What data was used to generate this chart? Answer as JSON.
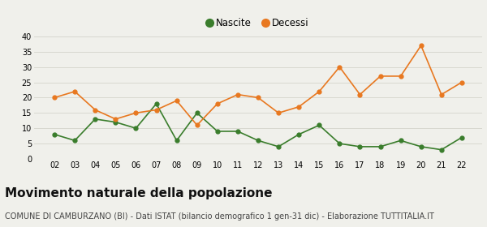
{
  "years": [
    "02",
    "03",
    "04",
    "05",
    "06",
    "07",
    "08",
    "09",
    "10",
    "11",
    "12",
    "13",
    "14",
    "15",
    "16",
    "17",
    "18",
    "19",
    "20",
    "21",
    "22"
  ],
  "nascite": [
    8,
    6,
    13,
    12,
    10,
    18,
    6,
    15,
    9,
    9,
    6,
    4,
    8,
    11,
    5,
    4,
    4,
    6,
    4,
    3,
    7
  ],
  "decessi": [
    20,
    22,
    16,
    13,
    15,
    16,
    19,
    11,
    18,
    21,
    20,
    15,
    17,
    22,
    30,
    21,
    27,
    27,
    37,
    21,
    25
  ],
  "nascite_color": "#3a7d2c",
  "decessi_color": "#e87820",
  "bg_color": "#f0f0eb",
  "ylim": [
    0,
    40
  ],
  "yticks": [
    0,
    5,
    10,
    15,
    20,
    25,
    30,
    35,
    40
  ],
  "title": "Movimento naturale della popolazione",
  "subtitle": "COMUNE DI CAMBURZANO (BI) - Dati ISTAT (bilancio demografico 1 gen-31 dic) - Elaborazione TUTTITALIA.IT",
  "title_fontsize": 11,
  "subtitle_fontsize": 7,
  "legend_label_nascite": "Nascite",
  "legend_label_decessi": "Decessi"
}
